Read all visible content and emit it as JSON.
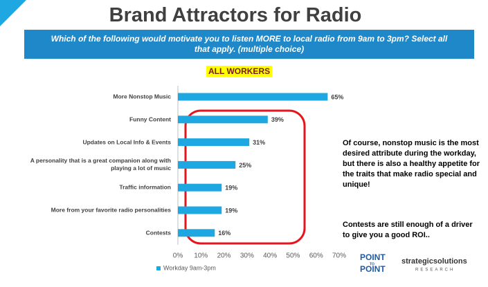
{
  "header": {
    "title": "Brand Attractors for Radio",
    "question": "Which of the following would motivate you to listen MORE to local radio from 9am to 3pm?  Select all that apply. (multiple choice)",
    "segment": "ALL WORKERS"
  },
  "chart_data": {
    "type": "bar",
    "orientation": "horizontal",
    "categories": [
      "More Nonstop Music",
      "Funny Content",
      "Updates on Local Info & Events",
      "A personality that is a great companion along with playing a lot of music",
      "Traffic information",
      "More from your favorite radio personalities",
      "Contests"
    ],
    "series": [
      {
        "name": "Workday 9am-3pm",
        "color": "#1ea7e0",
        "values": [
          65,
          39,
          31,
          25,
          19,
          19,
          16
        ],
        "value_labels": [
          "65%",
          "39%",
          "31%",
          "25%",
          "19%",
          "19%",
          "16%"
        ]
      }
    ],
    "xlim": [
      0,
      70
    ],
    "xticks": [
      {
        "value": 0,
        "label": "0%"
      },
      {
        "value": 10,
        "label": "10%"
      },
      {
        "value": 20,
        "label": "20%"
      },
      {
        "value": 30,
        "label": "30%"
      },
      {
        "value": 40,
        "label": "40%"
      },
      {
        "value": 50,
        "label": "50%"
      },
      {
        "value": 60,
        "label": "60%"
      },
      {
        "value": 70,
        "label": "70%"
      }
    ],
    "legend": "bottom-left"
  },
  "annotations": [
    "Of course, nonstop music is the most desired attribute during the workday, but there is also a healthy appetite for the traits that make radio special and unique!",
    "Contests are still enough of a driver to give you a good ROI.."
  ],
  "logos": {
    "left": [
      "POINT",
      "TO",
      "POINT"
    ],
    "right": [
      "strategicsolutions",
      "RESEARCH"
    ]
  }
}
